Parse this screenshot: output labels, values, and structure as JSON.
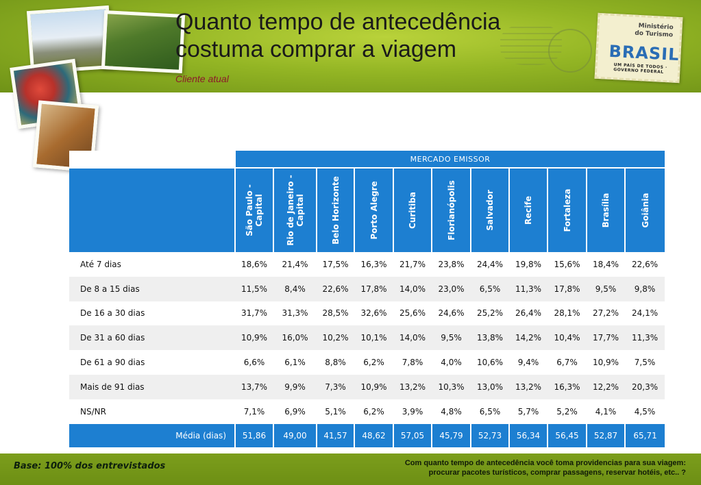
{
  "title_line1": "Quanto tempo de antecedência",
  "title_line2": "costuma comprar a viagem",
  "subtitle": "Cliente atual",
  "stamp": {
    "ministry_line1": "Ministério",
    "ministry_line2": "do Turismo",
    "brand": "BRASIL",
    "tagline": "UM PAÍS DE TODOS · GOVERNO FEDERAL"
  },
  "table": {
    "group_header": "MERCADO EMISSOR",
    "columns": [
      "São Paulo - Capital",
      "Rio de Janeiro - Capital",
      "Belo Horizonte",
      "Porto Alegre",
      "Curitiba",
      "Florianópolis",
      "Salvador",
      "Recife",
      "Fortaleza",
      "Brasília",
      "Goiânia"
    ],
    "rows": [
      {
        "label": "Até 7 dias",
        "values": [
          "18,6%",
          "21,4%",
          "17,5%",
          "16,3%",
          "21,7%",
          "23,8%",
          "24,4%",
          "19,8%",
          "15,6%",
          "18,4%",
          "22,6%"
        ]
      },
      {
        "label": "De 8 a 15 dias",
        "values": [
          "11,5%",
          "8,4%",
          "22,6%",
          "17,8%",
          "14,0%",
          "23,0%",
          "6,5%",
          "11,3%",
          "17,8%",
          "9,5%",
          "9,8%"
        ]
      },
      {
        "label": "De 16 a 30 dias",
        "values": [
          "31,7%",
          "31,3%",
          "28,5%",
          "32,6%",
          "25,6%",
          "24,6%",
          "25,2%",
          "26,4%",
          "28,1%",
          "27,2%",
          "24,1%"
        ]
      },
      {
        "label": "De 31 a 60 dias",
        "values": [
          "10,9%",
          "16,0%",
          "10,2%",
          "10,1%",
          "14,0%",
          "9,5%",
          "13,8%",
          "14,2%",
          "10,4%",
          "17,7%",
          "11,3%"
        ]
      },
      {
        "label": "De 61 a 90 dias",
        "values": [
          "6,6%",
          "6,1%",
          "8,8%",
          "6,2%",
          "7,8%",
          "4,0%",
          "10,6%",
          "9,4%",
          "6,7%",
          "10,9%",
          "7,5%"
        ]
      },
      {
        "label": "Mais de 91 dias",
        "values": [
          "13,7%",
          "9,9%",
          "7,3%",
          "10,9%",
          "13,2%",
          "10,3%",
          "13,0%",
          "13,2%",
          "16,3%",
          "12,2%",
          "20,3%"
        ]
      },
      {
        "label": "NS/NR",
        "values": [
          "7,1%",
          "6,9%",
          "5,1%",
          "6,2%",
          "3,9%",
          "4,8%",
          "6,5%",
          "5,7%",
          "5,2%",
          "4,1%",
          "4,5%"
        ]
      }
    ],
    "average": {
      "label": "Média (dias)",
      "values": [
        "51,86",
        "49,00",
        "41,57",
        "48,62",
        "57,05",
        "45,79",
        "52,73",
        "56,34",
        "56,45",
        "52,87",
        "65,71"
      ]
    }
  },
  "footer": {
    "base": "Base: 100% dos entrevistados",
    "question_line1": "Com quanto tempo de antecedência você toma providencias para sua viagem:",
    "question_line2": "procurar pacotes turísticos, comprar passagens, reservar hotéis, etc.. ?"
  },
  "colors": {
    "table_blue": "#1d7fd1",
    "band_green": "#93b524",
    "subtitle": "#8b1a2a"
  }
}
